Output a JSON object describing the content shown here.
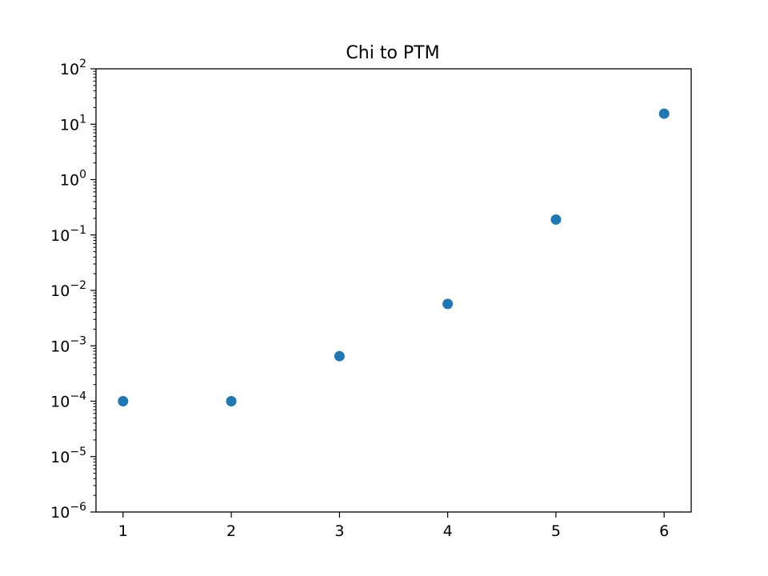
{
  "chart_data": {
    "type": "scatter",
    "title": "Chi to PTM",
    "xlabel": "",
    "ylabel": "",
    "yscale": "log",
    "xlim": [
      0.75,
      6.25
    ],
    "ylim": [
      1e-06,
      100
    ],
    "x_ticks": [
      1,
      2,
      3,
      4,
      5,
      6
    ],
    "x_tick_labels": [
      "1",
      "2",
      "3",
      "4",
      "5",
      "6"
    ],
    "y_ticks": [
      {
        "value": 1e-06,
        "base": "10",
        "exponent": "−6"
      },
      {
        "value": 1e-05,
        "base": "10",
        "exponent": "−5"
      },
      {
        "value": 0.0001,
        "base": "10",
        "exponent": "−4"
      },
      {
        "value": 0.001,
        "base": "10",
        "exponent": "−3"
      },
      {
        "value": 0.01,
        "base": "10",
        "exponent": "−2"
      },
      {
        "value": 0.1,
        "base": "10",
        "exponent": "−1"
      },
      {
        "value": 1,
        "base": "10",
        "exponent": "0"
      },
      {
        "value": 10,
        "base": "10",
        "exponent": "1"
      },
      {
        "value": 100,
        "base": "10",
        "exponent": "2"
      }
    ],
    "grid": false,
    "marker_color": "#1f77b4",
    "series": [
      {
        "x": [
          1,
          2,
          3,
          4,
          5,
          6
        ],
        "y": [
          0.0001,
          0.0001,
          0.00065,
          0.0057,
          0.19,
          15.5
        ]
      }
    ]
  }
}
